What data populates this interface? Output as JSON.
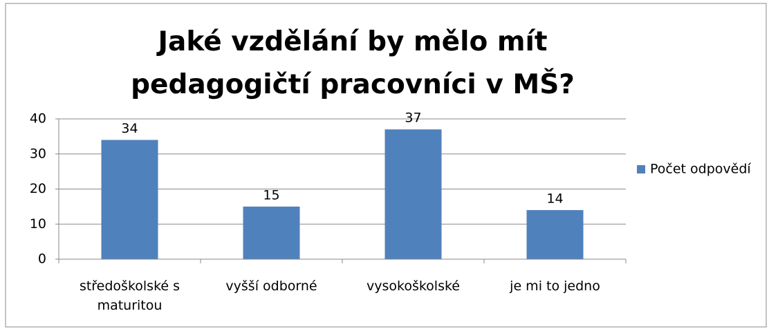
{
  "chart_data": {
    "type": "bar",
    "title": "Jaké vzdělání by mělo mít pedagogičtí pracovníci v MŠ?",
    "categories": [
      "středoškolské s maturitou",
      "vyšší odborné",
      "vysokoškolské",
      "je mi to jedno"
    ],
    "series": [
      {
        "name": "Počet odpovědí",
        "color": "#4f81bd",
        "values": [
          34,
          15,
          37,
          14
        ]
      }
    ],
    "ylim": [
      0,
      40
    ],
    "yticks": [
      0,
      10,
      20,
      30,
      40
    ],
    "grid": true,
    "legend": "right"
  }
}
